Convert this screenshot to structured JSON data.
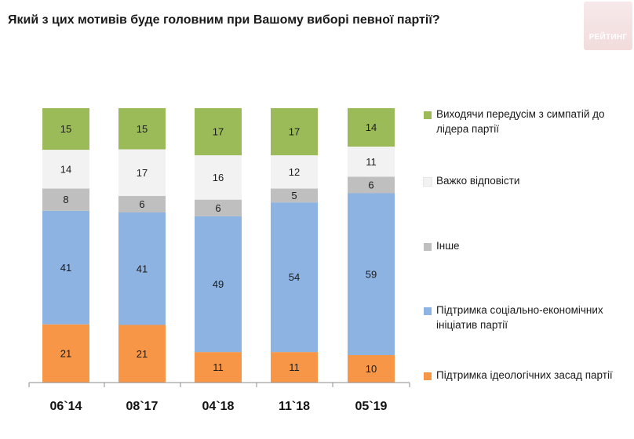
{
  "title": "Який з цих мотивів буде головним при Вашому виборі певної партії?",
  "logo": {
    "text": "РЕЙТИНГ"
  },
  "chart_data": {
    "type": "bar",
    "stacked": true,
    "categories": [
      "06`14",
      "08`17",
      "04`18",
      "11`18",
      "05`19"
    ],
    "series": [
      {
        "name": "Підтримка ідеологічних засад партії",
        "color": "#f79646",
        "values": [
          21,
          21,
          11,
          11,
          10
        ]
      },
      {
        "name": "Підтримка соціально-економічних ініціатив партії",
        "color": "#8db3e2",
        "values": [
          41,
          41,
          49,
          54,
          59
        ]
      },
      {
        "name": "Інше",
        "color": "#bfbfbf",
        "values": [
          8,
          6,
          6,
          5,
          6
        ]
      },
      {
        "name": "Важко відповісти",
        "color": "#f2f2f2",
        "values": [
          14,
          17,
          16,
          12,
          11
        ]
      },
      {
        "name": "Виходячи передусім з симпатій до лідера партії",
        "color": "#9bbb59",
        "values": [
          15,
          15,
          17,
          17,
          14
        ]
      }
    ],
    "legend_position": "right",
    "grid": false
  }
}
